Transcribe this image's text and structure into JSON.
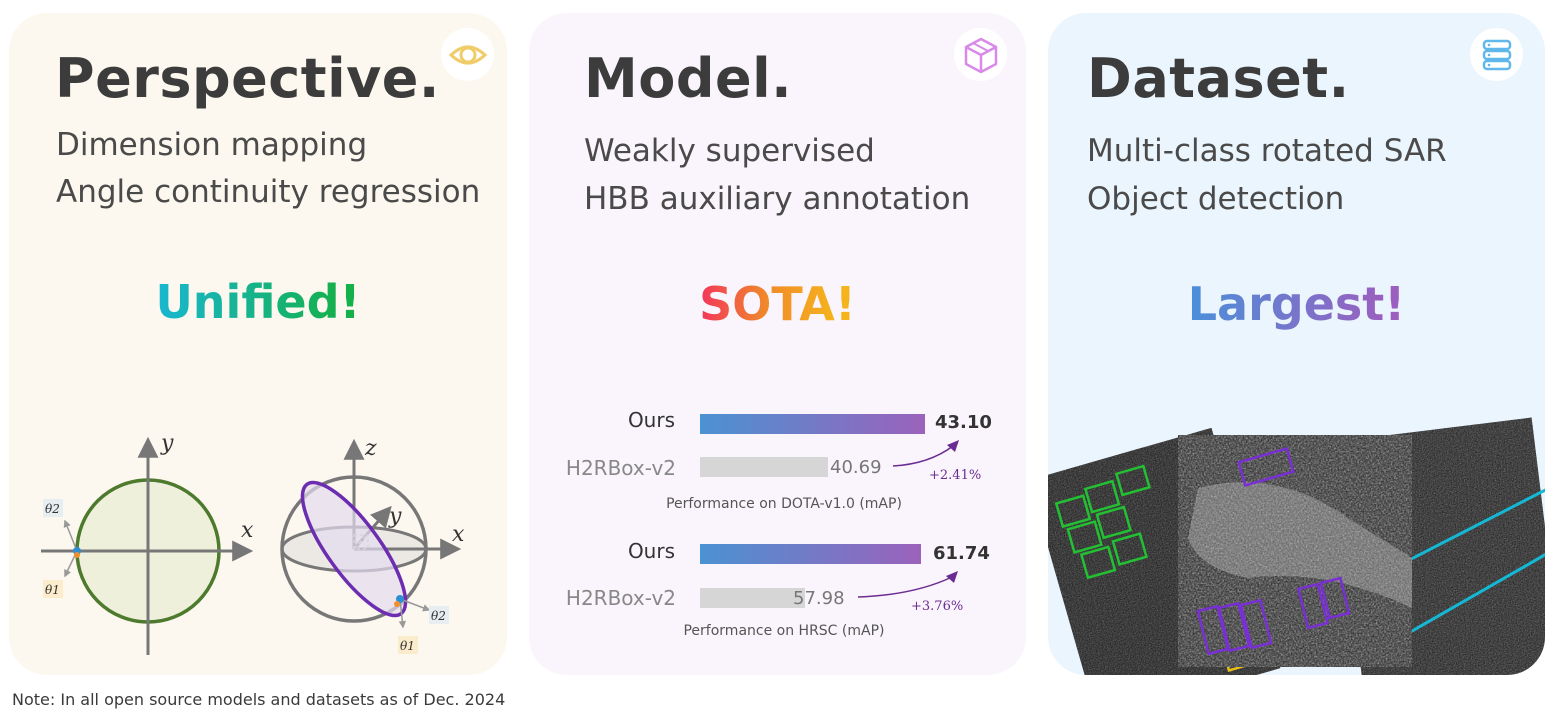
{
  "cards": {
    "perspective": {
      "title": "Perspective.",
      "lines": [
        "Dimension mapping",
        "Angle continuity regression"
      ],
      "highlight": "Unified",
      "icon": "eye-icon",
      "diagram": {
        "circle_labels": {
          "y": "y",
          "x": "x",
          "theta2": "θ2",
          "theta1": "θ1"
        },
        "sphere_labels": {
          "z": "z",
          "y": "y",
          "x": "x",
          "theta2": "θ2",
          "theta1": "θ1"
        }
      }
    },
    "model": {
      "title": "Model.",
      "lines": [
        "Weakly supervised",
        "HBB auxiliary annotation"
      ],
      "highlight": "SOTA",
      "icon": "cube-icon"
    },
    "dataset": {
      "title": "Dataset.",
      "lines": [
        "Multi-class rotated SAR",
        "Object detection"
      ],
      "highlight": "Largest",
      "icon": "database-icon"
    }
  },
  "exclaim": "!",
  "colors": {
    "unified_gradient": [
      "#19b7d2",
      "#14b04a"
    ],
    "sota_gradient": [
      "#f2355a",
      "#f5b41c"
    ],
    "largest_gradient": [
      "#4a90d9",
      "#9b5fbf"
    ],
    "ours_bar_gradient": [
      "#4b92d2",
      "#9b62bb"
    ],
    "baseline_bar": "#d6d6d6",
    "gain_color": "#6a2c91",
    "box_green": "#22c032",
    "box_purple": "#7a2fd6",
    "line_cyan": "#14b8d4",
    "box_yellow": "#e6c11a"
  },
  "chart_data": [
    {
      "type": "bar",
      "title": "Performance on DOTA-v1.0 (mAP)",
      "categories": [
        "Ours",
        "H2RBox-v2"
      ],
      "values": [
        43.1,
        40.69
      ],
      "value_labels": [
        "43.10",
        "40.69"
      ],
      "gain": "+2.41%"
    },
    {
      "type": "bar",
      "title": "Performance on HRSC (mAP)",
      "categories": [
        "Ours",
        "H2RBox-v2"
      ],
      "values": [
        61.74,
        57.98
      ],
      "value_labels": [
        "61.74",
        "57.98"
      ],
      "gain": "+3.76%"
    }
  ],
  "note": "Note: In all open source models and datasets as of Dec. 2024"
}
